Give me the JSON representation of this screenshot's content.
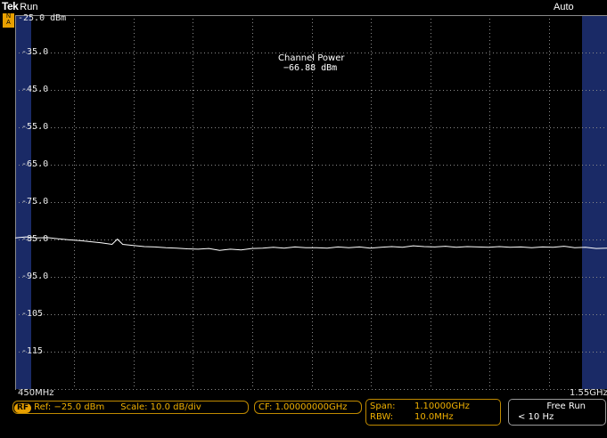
{
  "header": {
    "brand": "Tek",
    "run_state": "Run",
    "trigger_mode": "Auto"
  },
  "marker": {
    "line1": "N",
    "line2": "A"
  },
  "y_axis": {
    "labels": [
      "-25.0 dBm",
      "-35.0",
      "-45.0",
      "-55.0",
      "-65.0",
      "-75.0",
      "-85.0",
      "-95.0",
      "-105",
      "-115"
    ]
  },
  "measurement": {
    "title": "Channel Power",
    "value": "−66.88 dBm"
  },
  "freq_axis": {
    "start": "450MHz",
    "stop": "1.55GHz"
  },
  "status": {
    "rf_label": "RF",
    "ref": "Ref: −25.0 dBm",
    "scale": "Scale: 10.0 dB/div",
    "cf": "CF: 1.00000000GHz",
    "span_label": "Span:",
    "span_value": "1.10000GHz",
    "rbw_label": "RBW:",
    "rbw_value": "10.0MHz",
    "trigger_title": "Free Run",
    "trigger_sub": "< 10 Hz"
  },
  "colors": {
    "accent": "#e8a000",
    "trace": "#ffffff",
    "grid": "#8a8a8a",
    "band": "#1a2a66"
  },
  "chart_data": {
    "type": "line",
    "xlabel": "",
    "ylabel": "",
    "x_range_mhz": [
      450,
      1550
    ],
    "y_range_dbm": [
      -125,
      -25
    ],
    "grid": true,
    "trace_dbm": [
      [
        450,
        -84.6
      ],
      [
        470,
        -84.3
      ],
      [
        490,
        -84.6
      ],
      [
        510,
        -84.5
      ],
      [
        530,
        -84.8
      ],
      [
        550,
        -85.1
      ],
      [
        570,
        -85.3
      ],
      [
        590,
        -85.6
      ],
      [
        610,
        -85.9
      ],
      [
        630,
        -86.3
      ],
      [
        640,
        -84.9
      ],
      [
        650,
        -86.3
      ],
      [
        670,
        -86.6
      ],
      [
        690,
        -86.9
      ],
      [
        710,
        -87.0
      ],
      [
        730,
        -87.2
      ],
      [
        750,
        -87.3
      ],
      [
        770,
        -87.5
      ],
      [
        790,
        -87.6
      ],
      [
        810,
        -87.4
      ],
      [
        830,
        -87.9
      ],
      [
        850,
        -87.6
      ],
      [
        870,
        -87.8
      ],
      [
        890,
        -87.4
      ],
      [
        910,
        -87.3
      ],
      [
        930,
        -87.1
      ],
      [
        950,
        -87.3
      ],
      [
        970,
        -87.0
      ],
      [
        990,
        -87.2
      ],
      [
        1010,
        -87.2
      ],
      [
        1030,
        -87.3
      ],
      [
        1050,
        -87.0
      ],
      [
        1070,
        -87.2
      ],
      [
        1090,
        -87.0
      ],
      [
        1110,
        -87.3
      ],
      [
        1130,
        -87.1
      ],
      [
        1150,
        -86.9
      ],
      [
        1170,
        -87.1
      ],
      [
        1190,
        -86.7
      ],
      [
        1210,
        -86.9
      ],
      [
        1230,
        -87.0
      ],
      [
        1250,
        -86.8
      ],
      [
        1270,
        -87.1
      ],
      [
        1290,
        -86.9
      ],
      [
        1310,
        -87.0
      ],
      [
        1330,
        -87.1
      ],
      [
        1350,
        -86.9
      ],
      [
        1370,
        -87.1
      ],
      [
        1390,
        -87.0
      ],
      [
        1410,
        -87.2
      ],
      [
        1430,
        -87.0
      ],
      [
        1450,
        -87.1
      ],
      [
        1470,
        -86.8
      ],
      [
        1490,
        -87.2
      ],
      [
        1510,
        -87.1
      ],
      [
        1530,
        -87.4
      ],
      [
        1550,
        -87.3
      ]
    ]
  }
}
